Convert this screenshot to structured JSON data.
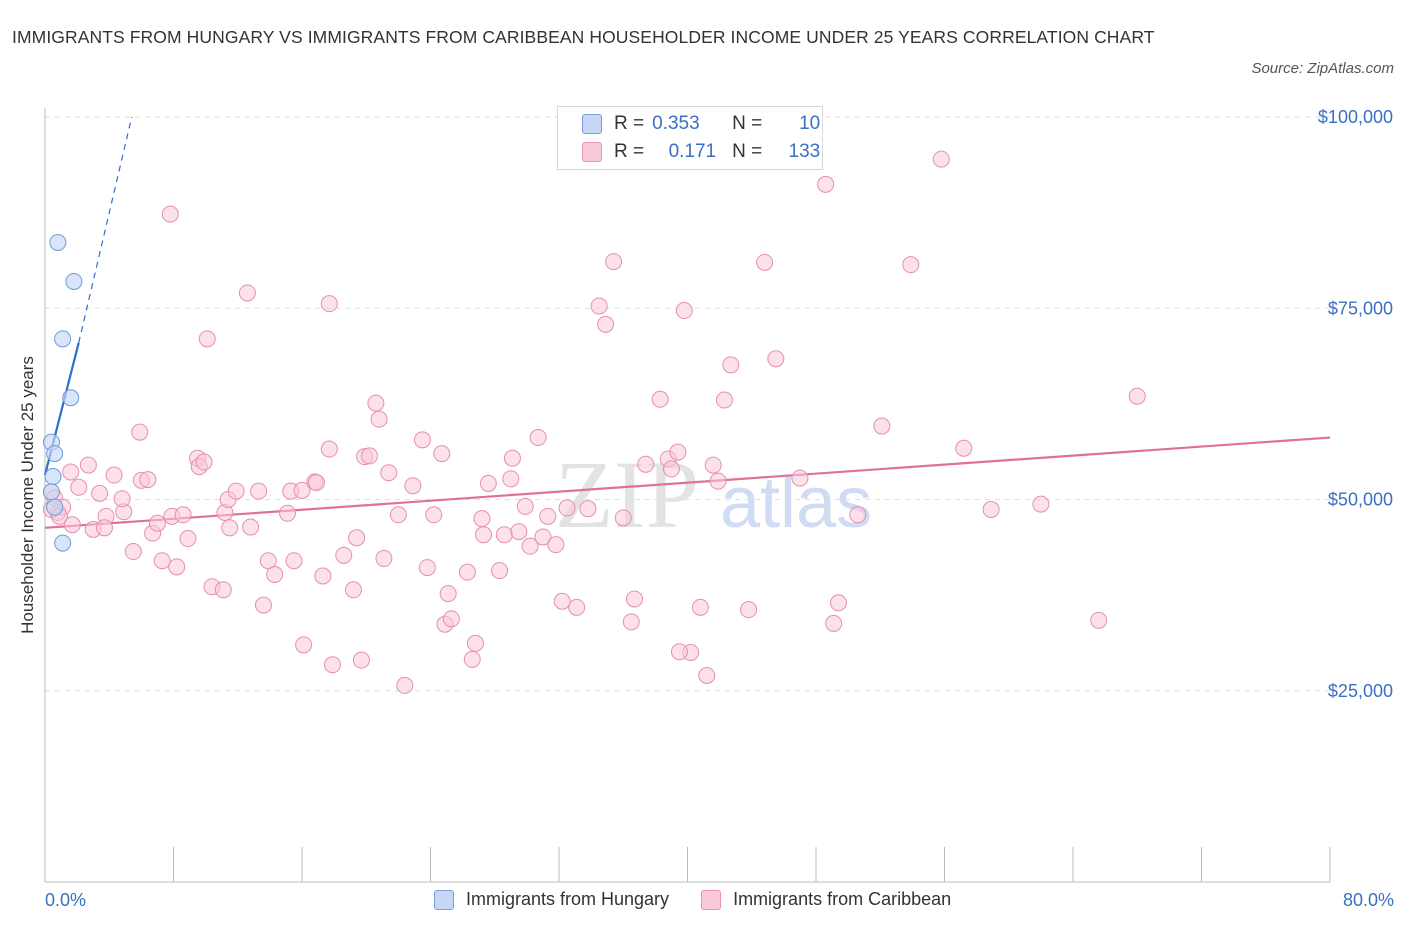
{
  "header": {
    "title": "IMMIGRANTS FROM HUNGARY VS IMMIGRANTS FROM CARIBBEAN HOUSEHOLDER INCOME UNDER 25 YEARS CORRELATION CHART",
    "source": "Source: ZipAtlas.com"
  },
  "legend": {
    "row1": {
      "r_label": "R =",
      "r_value": "0.353",
      "n_label": "N =",
      "n_value": "10"
    },
    "row2": {
      "r_label": "R =",
      "r_value": "0.171",
      "n_label": "N =",
      "n_value": "133"
    },
    "bottom": [
      "Immigrants from Hungary",
      "Immigrants from Caribbean"
    ]
  },
  "colors": {
    "hungary_fill": "#c5d7f5",
    "hungary_stroke": "#6f9ad8",
    "hungary_line": "#2d6fd1",
    "caribbean_fill": "#f9c9d8",
    "caribbean_stroke": "#e58fb0",
    "caribbean_line": "#e07099",
    "axis_label": "#3b6fc4"
  },
  "watermark": {
    "zip": "ZIP",
    "atlas": "atlas"
  },
  "chart_data": {
    "type": "scatter",
    "title": "IMMIGRANTS FROM HUNGARY VS IMMIGRANTS FROM CARIBBEAN HOUSEHOLDER INCOME UNDER 25 YEARS CORRELATION CHART",
    "xlabel": "",
    "ylabel": "Householder Income Under 25 years",
    "xlim": [
      0,
      80
    ],
    "ylim": [
      0,
      100000
    ],
    "x_tick_labels": [
      "0.0%",
      "80.0%"
    ],
    "y_ticks": [
      25000,
      50000,
      75000,
      100000
    ],
    "y_tick_labels": [
      "$25,000",
      "$50,000",
      "$75,000",
      "$100,000"
    ],
    "grid": "horizontal dashed",
    "legend_position": "top-center",
    "series": [
      {
        "name": "Immigrants from Hungary",
        "points": [
          [
            0.8,
            83600
          ],
          [
            1.8,
            78500
          ],
          [
            1.1,
            71000
          ],
          [
            1.6,
            63300
          ],
          [
            0.4,
            57500
          ],
          [
            0.6,
            56000
          ],
          [
            0.5,
            53000
          ],
          [
            0.4,
            51000
          ],
          [
            0.6,
            49000
          ],
          [
            1.1,
            44300
          ]
        ],
        "trend": {
          "x0": 0,
          "y0": 53200,
          "x1": 2.1,
          "y1": 70500,
          "dashed_to": {
            "x": 5.4,
            "y": 100000
          }
        }
      },
      {
        "name": "Immigrants from Caribbean",
        "points": [
          [
            0.4,
            51000
          ],
          [
            0.6,
            50200
          ],
          [
            0.8,
            48300
          ],
          [
            1.1,
            49000
          ],
          [
            0.4,
            48700
          ],
          [
            0.9,
            47800
          ],
          [
            1.6,
            53600
          ],
          [
            1.7,
            46700
          ],
          [
            2.1,
            51600
          ],
          [
            2.7,
            54500
          ],
          [
            3.4,
            50800
          ],
          [
            3.0,
            46100
          ],
          [
            3.8,
            47800
          ],
          [
            3.7,
            46300
          ],
          [
            4.3,
            53200
          ],
          [
            4.9,
            48400
          ],
          [
            4.8,
            50100
          ],
          [
            5.5,
            43200
          ],
          [
            5.9,
            58800
          ],
          [
            6.0,
            52500
          ],
          [
            6.4,
            52600
          ],
          [
            6.7,
            45600
          ],
          [
            7.0,
            46900
          ],
          [
            7.3,
            42000
          ],
          [
            7.8,
            87300
          ],
          [
            7.9,
            47800
          ],
          [
            8.2,
            41200
          ],
          [
            8.6,
            48000
          ],
          [
            8.9,
            44900
          ],
          [
            9.5,
            55400
          ],
          [
            9.6,
            54300
          ],
          [
            9.9,
            54900
          ],
          [
            10.1,
            71000
          ],
          [
            10.4,
            38600
          ],
          [
            11.1,
            38200
          ],
          [
            11.2,
            48300
          ],
          [
            11.4,
            50000
          ],
          [
            11.5,
            46300
          ],
          [
            11.9,
            51100
          ],
          [
            12.6,
            77000
          ],
          [
            12.8,
            46400
          ],
          [
            13.3,
            51100
          ],
          [
            13.6,
            36200
          ],
          [
            13.9,
            42000
          ],
          [
            14.3,
            40200
          ],
          [
            15.1,
            48200
          ],
          [
            15.3,
            51100
          ],
          [
            15.5,
            42000
          ],
          [
            16.0,
            51200
          ],
          [
            16.1,
            31000
          ],
          [
            16.8,
            52300
          ],
          [
            16.9,
            52200
          ],
          [
            17.3,
            40000
          ],
          [
            17.7,
            56600
          ],
          [
            17.7,
            75600
          ],
          [
            17.9,
            28400
          ],
          [
            18.6,
            42700
          ],
          [
            19.2,
            38200
          ],
          [
            19.4,
            45000
          ],
          [
            19.7,
            29000
          ],
          [
            19.9,
            55600
          ],
          [
            20.2,
            55700
          ],
          [
            20.6,
            62600
          ],
          [
            20.8,
            60500
          ],
          [
            21.1,
            42300
          ],
          [
            21.4,
            53500
          ],
          [
            22.0,
            48000
          ],
          [
            22.4,
            25700
          ],
          [
            22.9,
            51800
          ],
          [
            23.5,
            57800
          ],
          [
            23.8,
            41100
          ],
          [
            24.2,
            48000
          ],
          [
            24.7,
            56000
          ],
          [
            24.9,
            33700
          ],
          [
            25.1,
            37700
          ],
          [
            25.3,
            34400
          ],
          [
            26.3,
            40500
          ],
          [
            26.6,
            29100
          ],
          [
            26.8,
            31200
          ],
          [
            27.2,
            47500
          ],
          [
            27.3,
            45400
          ],
          [
            27.6,
            52100
          ],
          [
            28.3,
            40700
          ],
          [
            28.6,
            45400
          ],
          [
            29.0,
            52700
          ],
          [
            29.1,
            55400
          ],
          [
            29.5,
            45800
          ],
          [
            29.9,
            49100
          ],
          [
            30.2,
            43900
          ],
          [
            30.7,
            58100
          ],
          [
            31.0,
            45100
          ],
          [
            31.3,
            47800
          ],
          [
            31.8,
            44100
          ],
          [
            32.2,
            36700
          ],
          [
            32.5,
            48900
          ],
          [
            33.1,
            35900
          ],
          [
            33.8,
            48800
          ],
          [
            34.5,
            75300
          ],
          [
            34.9,
            72900
          ],
          [
            35.4,
            81100
          ],
          [
            36.0,
            47600
          ],
          [
            36.5,
            34000
          ],
          [
            36.7,
            37000
          ],
          [
            37.4,
            54600
          ],
          [
            38.3,
            63100
          ],
          [
            38.8,
            55300
          ],
          [
            39.0,
            54000
          ],
          [
            39.4,
            56200
          ],
          [
            39.8,
            74700
          ],
          [
            40.2,
            30000
          ],
          [
            40.8,
            35900
          ],
          [
            41.2,
            27000
          ],
          [
            41.6,
            54500
          ],
          [
            41.9,
            52400
          ],
          [
            42.3,
            63000
          ],
          [
            42.7,
            67600
          ],
          [
            43.8,
            35600
          ],
          [
            44.8,
            81000
          ],
          [
            45.5,
            68400
          ],
          [
            47.0,
            52800
          ],
          [
            48.6,
            91200
          ],
          [
            49.1,
            33800
          ],
          [
            49.4,
            36500
          ],
          [
            50.6,
            48000
          ],
          [
            52.1,
            59600
          ],
          [
            53.9,
            80700
          ],
          [
            55.8,
            94500
          ],
          [
            57.2,
            56700
          ],
          [
            58.9,
            48700
          ],
          [
            62.0,
            49400
          ],
          [
            65.6,
            34200
          ],
          [
            68.0,
            63500
          ],
          [
            39.5,
            30100
          ]
        ],
        "trend": {
          "x0": 0,
          "y0": 46300,
          "x1": 80,
          "y1": 58100
        }
      }
    ]
  }
}
